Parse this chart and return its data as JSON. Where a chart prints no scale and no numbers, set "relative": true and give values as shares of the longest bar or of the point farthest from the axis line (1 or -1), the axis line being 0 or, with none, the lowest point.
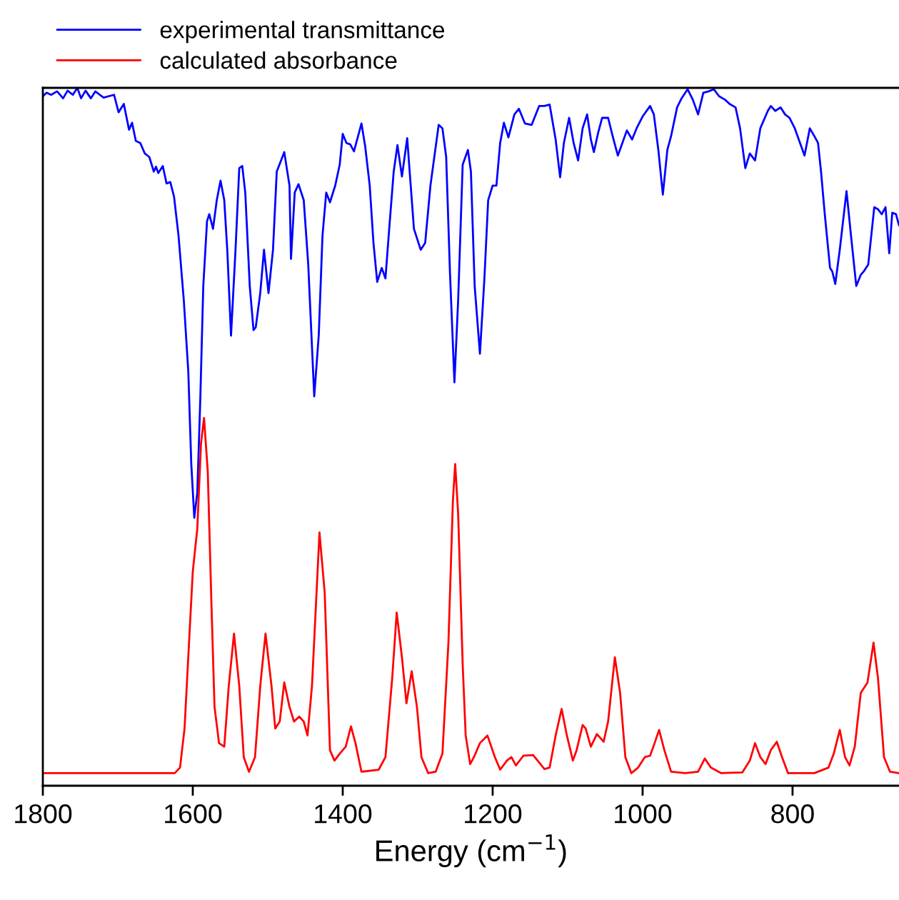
{
  "chart_data": {
    "type": "line",
    "xlabel": "Energy (cm$^{−1}$)",
    "relative": true,
    "xlim": [
      1800,
      658
    ],
    "xticks": [
      1800,
      1600,
      1400,
      1200,
      1000,
      800
    ],
    "legend": "top left",
    "grid": false,
    "marker": "none",
    "line_style": "solid",
    "series": [
      {
        "name": "experimental transmittance",
        "color": "#0000ff",
        "x": [
          1800,
          1795,
          1789,
          1781,
          1773,
          1767,
          1760,
          1754,
          1749,
          1743,
          1736,
          1730,
          1724,
          1719,
          1705,
          1699,
          1692,
          1685,
          1681,
          1676,
          1670,
          1664,
          1658,
          1652,
          1649,
          1646,
          1640,
          1635,
          1630,
          1625,
          1619,
          1612,
          1606,
          1602,
          1598,
          1594,
          1590,
          1586,
          1581,
          1578,
          1573,
          1568,
          1563,
          1558,
          1554,
          1549,
          1543,
          1538,
          1534,
          1530,
          1524,
          1519,
          1516,
          1510,
          1505,
          1499,
          1493,
          1488,
          1478,
          1471,
          1469,
          1464,
          1459,
          1452,
          1446,
          1438,
          1432,
          1427,
          1422,
          1417,
          1410,
          1404,
          1400,
          1395,
          1390,
          1385,
          1375,
          1370,
          1364,
          1359,
          1354,
          1348,
          1343,
          1338,
          1332,
          1327,
          1321,
          1314,
          1310,
          1305,
          1296,
          1290,
          1283,
          1272,
          1267,
          1262,
          1257,
          1251,
          1246,
          1240,
          1233,
          1229,
          1224,
          1217,
          1211,
          1206,
          1200,
          1195,
          1190,
          1185,
          1179,
          1171,
          1165,
          1157,
          1148,
          1138,
          1131,
          1124,
          1116,
          1110,
          1105,
          1098,
          1092,
          1086,
          1080,
          1074,
          1069,
          1065,
          1059,
          1054,
          1046,
          1040,
          1033,
          1027,
          1021,
          1014,
          1008,
          1000,
          990,
          985,
          979,
          973,
          967,
          962,
          954,
          948,
          940,
          933,
          926,
          919,
          912,
          905,
          898,
          890,
          884,
          876,
          870,
          863,
          857,
          850,
          843,
          833,
          829,
          823,
          816,
          810,
          804,
          797,
          790,
          784,
          777,
          771,
          766,
          762,
          757,
          750,
          747,
          743,
          737,
          728,
          722,
          715,
          709,
          705,
          699,
          691,
          686,
          681,
          676,
          671,
          667,
          662,
          658
        ],
        "values": [
          0.988,
          0.993,
          0.99,
          0.995,
          0.985,
          0.996,
          0.99,
          1,
          0.985,
          0.996,
          0.985,
          0.995,
          0.99,
          0.986,
          0.99,
          0.965,
          0.977,
          0.94,
          0.95,
          0.924,
          0.921,
          0.906,
          0.901,
          0.88,
          0.887,
          0.878,
          0.888,
          0.863,
          0.865,
          0.844,
          0.788,
          0.696,
          0.594,
          0.461,
          0.384,
          0.42,
          0.553,
          0.716,
          0.809,
          0.819,
          0.798,
          0.839,
          0.867,
          0.839,
          0.768,
          0.645,
          0.768,
          0.885,
          0.888,
          0.85,
          0.716,
          0.653,
          0.657,
          0.706,
          0.768,
          0.706,
          0.768,
          0.88,
          0.908,
          0.86,
          0.755,
          0.85,
          0.862,
          0.839,
          0.747,
          0.558,
          0.645,
          0.788,
          0.85,
          0.836,
          0.86,
          0.89,
          0.934,
          0.921,
          0.919,
          0.909,
          0.949,
          0.916,
          0.86,
          0.778,
          0.722,
          0.742,
          0.727,
          0.798,
          0.88,
          0.918,
          0.873,
          0.928,
          0.87,
          0.798,
          0.768,
          0.778,
          0.86,
          0.947,
          0.942,
          0.901,
          0.737,
          0.578,
          0.696,
          0.89,
          0.911,
          0.88,
          0.716,
          0.619,
          0.727,
          0.839,
          0.86,
          0.86,
          0.921,
          0.95,
          0.929,
          0.962,
          0.97,
          0.949,
          0.947,
          0.974,
          0.974,
          0.976,
          0.926,
          0.872,
          0.921,
          0.957,
          0.921,
          0.896,
          0.942,
          0.962,
          0.926,
          0.908,
          0.937,
          0.957,
          0.957,
          0.931,
          0.903,
          0.921,
          0.939,
          0.926,
          0.942,
          0.959,
          0.974,
          0.962,
          0.911,
          0.847,
          0.911,
          0.931,
          0.972,
          0.985,
          0.998,
          0.983,
          0.962,
          0.993,
          0.995,
          0.998,
          0.988,
          0.983,
          0.977,
          0.972,
          0.942,
          0.885,
          0.906,
          0.896,
          0.942,
          0.967,
          0.974,
          0.967,
          0.972,
          0.962,
          0.957,
          0.942,
          0.921,
          0.903,
          0.942,
          0.931,
          0.921,
          0.88,
          0.819,
          0.742,
          0.737,
          0.719,
          0.768,
          0.852,
          0.788,
          0.716,
          0.732,
          0.737,
          0.747,
          0.829,
          0.826,
          0.819,
          0.829,
          0.763,
          0.821,
          0.819,
          0.803
        ]
      },
      {
        "name": "calculated absorbance",
        "color": "#ff0000",
        "x": [
          1800,
          1624,
          1617,
          1611,
          1605,
          1600,
          1594,
          1589,
          1585,
          1580,
          1575,
          1571,
          1565,
          1558,
          1552,
          1545,
          1538,
          1532,
          1525,
          1517,
          1510,
          1503,
          1495,
          1490,
          1484,
          1478,
          1471,
          1465,
          1458,
          1452,
          1447,
          1441,
          1431,
          1424,
          1417,
          1411,
          1404,
          1396,
          1389,
          1383,
          1375,
          1352,
          1343,
          1334,
          1328,
          1321,
          1315,
          1308,
          1301,
          1295,
          1286,
          1276,
          1267,
          1259,
          1253,
          1250,
          1246,
          1240,
          1236,
          1230,
          1225,
          1217,
          1207,
          1197,
          1190,
          1181,
          1175,
          1169,
          1159,
          1146,
          1140,
          1131,
          1124,
          1116,
          1108,
          1101,
          1093,
          1088,
          1080,
          1076,
          1069,
          1061,
          1052,
          1046,
          1037,
          1030,
          1023,
          1015,
          1006,
          997,
          990,
          984,
          978,
          971,
          962,
          943,
          926,
          917,
          909,
          895,
          867,
          857,
          850,
          843,
          836,
          829,
          821,
          814,
          806,
          771,
          752,
          745,
          737,
          730,
          724,
          717,
          709,
          700,
          692,
          686,
          678,
          670,
          658
        ],
        "values": [
          0.018,
          0.018,
          0.026,
          0.082,
          0.205,
          0.307,
          0.368,
          0.491,
          0.527,
          0.45,
          0.256,
          0.113,
          0.061,
          0.056,
          0.143,
          0.218,
          0.143,
          0.041,
          0.02,
          0.041,
          0.143,
          0.218,
          0.143,
          0.082,
          0.092,
          0.148,
          0.113,
          0.092,
          0.099,
          0.092,
          0.072,
          0.143,
          0.363,
          0.276,
          0.051,
          0.036,
          0.046,
          0.056,
          0.085,
          0.061,
          0.02,
          0.023,
          0.041,
          0.154,
          0.248,
          0.184,
          0.118,
          0.164,
          0.113,
          0.041,
          0.018,
          0.02,
          0.046,
          0.205,
          0.409,
          0.461,
          0.389,
          0.174,
          0.072,
          0.031,
          0.041,
          0.061,
          0.072,
          0.041,
          0.023,
          0.036,
          0.041,
          0.029,
          0.043,
          0.044,
          0.036,
          0.024,
          0.026,
          0.072,
          0.11,
          0.072,
          0.036,
          0.051,
          0.087,
          0.082,
          0.056,
          0.074,
          0.063,
          0.092,
          0.184,
          0.133,
          0.041,
          0.018,
          0.026,
          0.041,
          0.043,
          0.061,
          0.08,
          0.051,
          0.02,
          0.018,
          0.02,
          0.039,
          0.026,
          0.018,
          0.019,
          0.036,
          0.061,
          0.041,
          0.031,
          0.051,
          0.063,
          0.041,
          0.018,
          0.018,
          0.026,
          0.046,
          0.08,
          0.041,
          0.029,
          0.056,
          0.133,
          0.148,
          0.205,
          0.154,
          0.041,
          0.02,
          0.018
        ]
      }
    ]
  }
}
